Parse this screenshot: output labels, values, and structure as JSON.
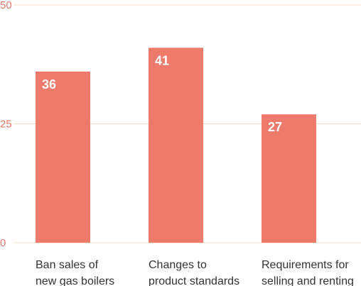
{
  "chart_data": {
    "type": "bar",
    "categories": [
      [
        "Ban sales of",
        "new gas boilers"
      ],
      [
        "Changes to",
        "product standards"
      ],
      [
        "Requirements for",
        "selling and renting"
      ]
    ],
    "values": [
      36,
      41,
      27
    ],
    "yticks": [
      0,
      25,
      50
    ],
    "ylim": [
      0,
      50
    ],
    "grid": true,
    "bar_color": "#ee7a6c",
    "title": "",
    "xlabel": "",
    "ylabel": ""
  }
}
